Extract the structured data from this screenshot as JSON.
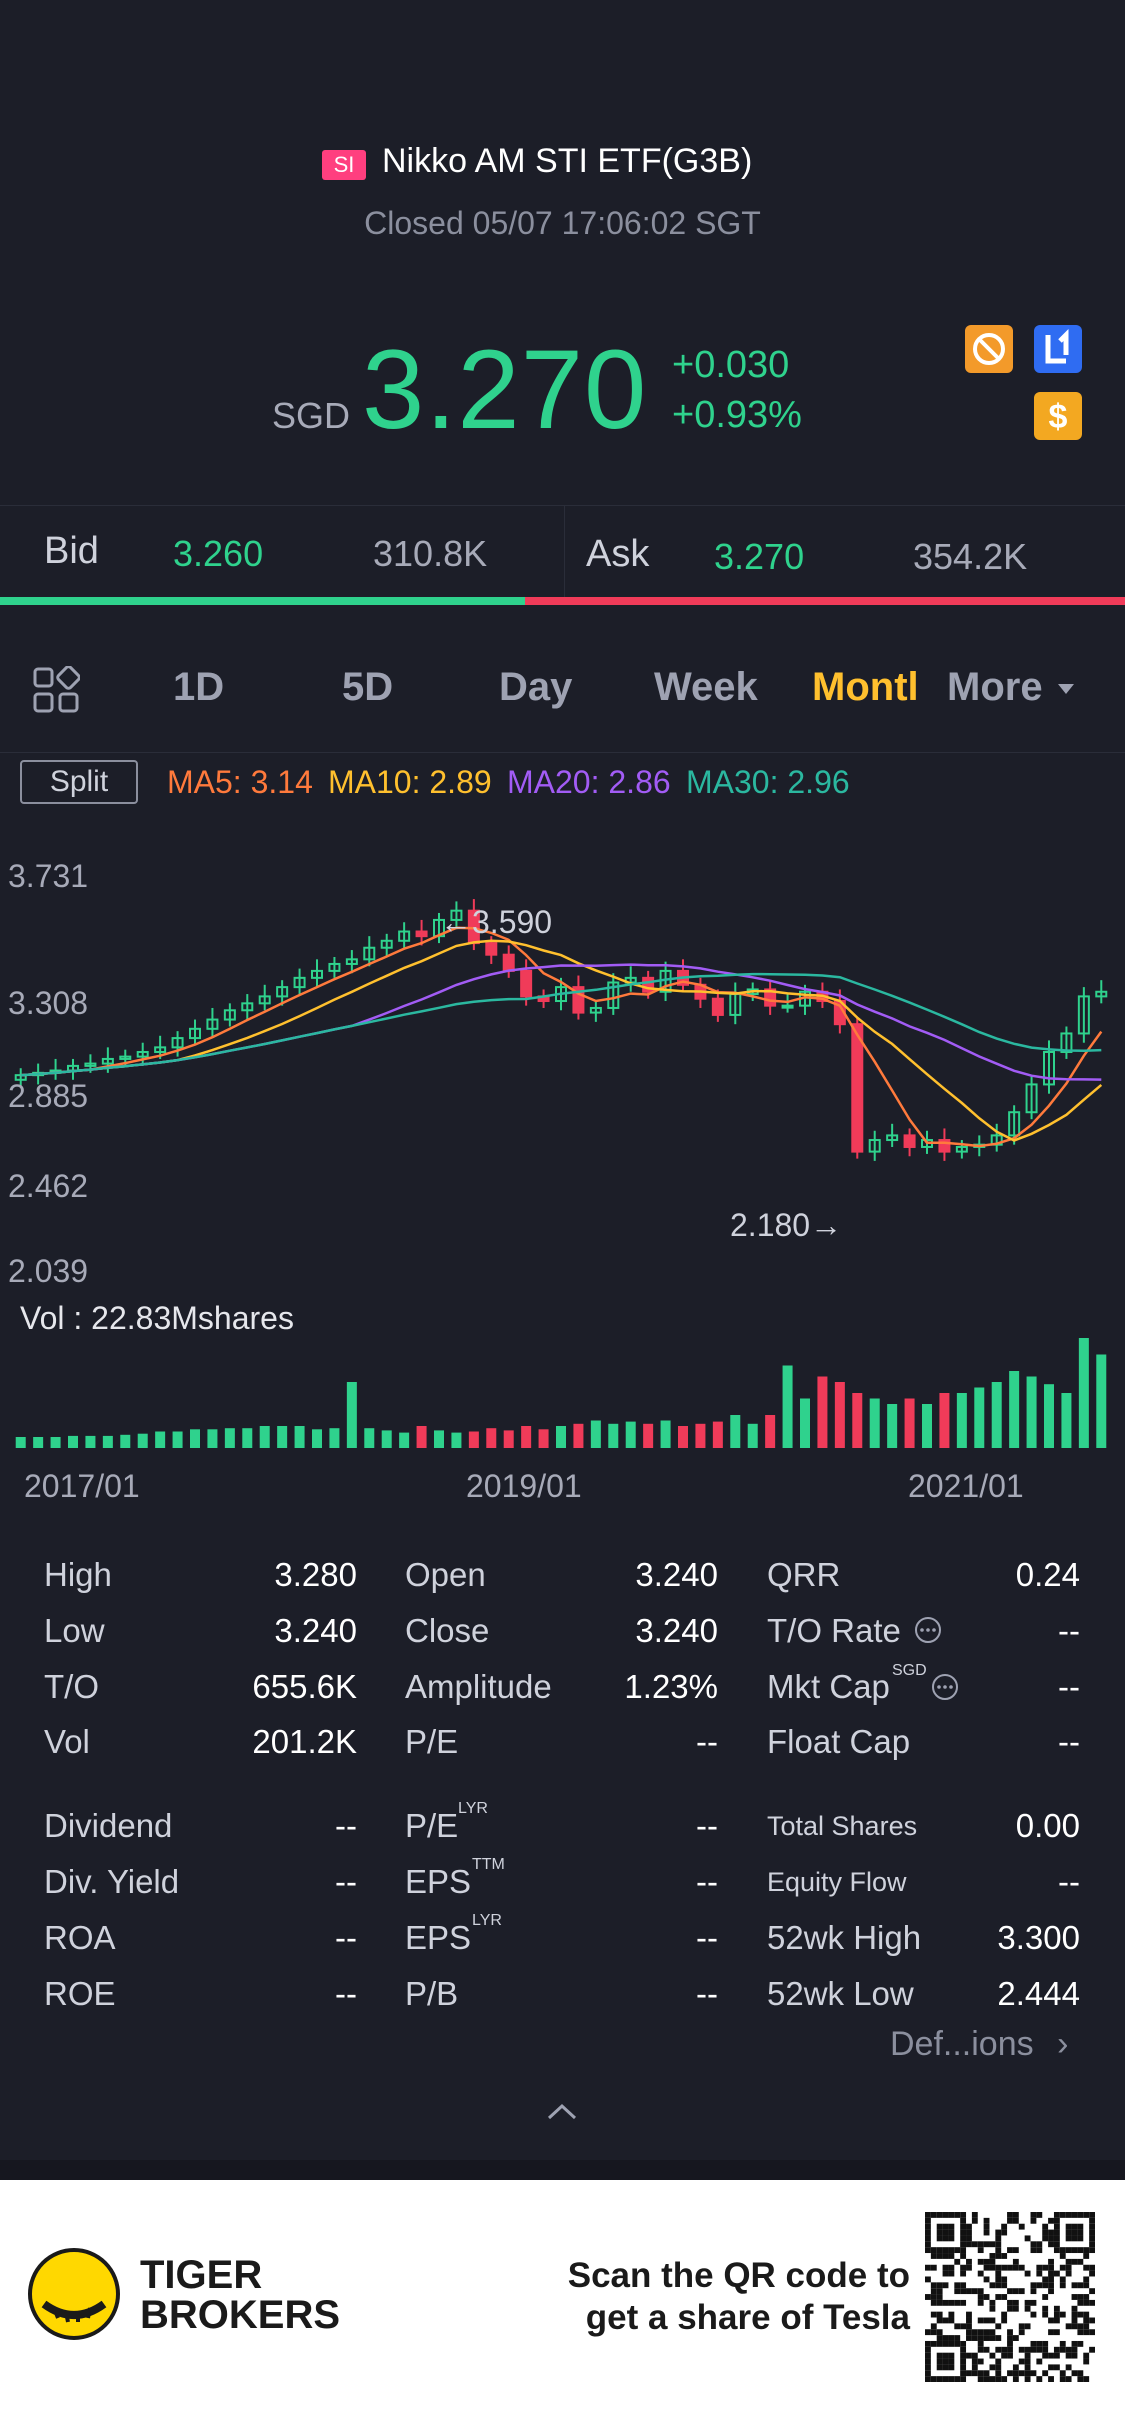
{
  "header": {
    "market_tag": "SI",
    "title": "Nikko AM STI ETF(G3B)",
    "status": "Closed 05/07 17:06:02 SGT",
    "currency": "SGD",
    "price": "3.270",
    "change": "+0.030",
    "change_pct": "+0.93%",
    "icons": [
      "no-short-icon",
      "level1-icon",
      "dollar-icon"
    ]
  },
  "quote": {
    "bid_label": "Bid",
    "bid_price": "3.260",
    "bid_size": "310.8K",
    "ask_label": "Ask",
    "ask_price": "3.270",
    "ask_size": "354.2K",
    "bid_ratio": 0.466
  },
  "tabs": [
    "1D",
    "5D",
    "Day",
    "Week",
    "Montl",
    "More"
  ],
  "active_tab": "Montl",
  "indicators": {
    "split_label": "Split",
    "ma5": "MA5: 3.14",
    "ma10": "MA10: 2.89",
    "ma20": "MA20: 2.86",
    "ma30": "MA30: 2.96"
  },
  "colors": {
    "up": "#2fd28d",
    "down": "#f03b59",
    "ma5": "#ff7a3c",
    "ma10": "#ffc02e",
    "ma20": "#a25cf5",
    "ma30": "#2bb8a0",
    "active_tab": "#ffc02e"
  },
  "chart_data": {
    "type": "candlestick",
    "y_ticks": [
      "3.731",
      "3.308",
      "2.885",
      "2.462",
      "2.039"
    ],
    "ylim": [
      2.039,
      3.731
    ],
    "x_ticks": [
      "2017/01",
      "2019/01",
      "2021/01"
    ],
    "high_annotation": "←3.590",
    "low_annotation": "2.180→",
    "volume_label": "Vol  : 22.83Mshares",
    "closes": [
      2.88,
      2.89,
      2.9,
      2.92,
      2.93,
      2.95,
      2.96,
      2.98,
      3.0,
      3.04,
      3.08,
      3.12,
      3.16,
      3.19,
      3.22,
      3.26,
      3.3,
      3.33,
      3.36,
      3.38,
      3.43,
      3.46,
      3.5,
      3.48,
      3.55,
      3.59,
      3.45,
      3.4,
      3.33,
      3.22,
      3.2,
      3.26,
      3.15,
      3.17,
      3.28,
      3.3,
      3.24,
      3.33,
      3.27,
      3.21,
      3.14,
      3.23,
      3.25,
      3.18,
      3.18,
      3.24,
      3.2,
      3.1,
      2.55,
      2.6,
      2.62,
      2.57,
      2.6,
      2.55,
      2.57,
      2.58,
      2.62,
      2.72,
      2.84,
      2.98,
      3.06,
      3.22,
      3.24
    ],
    "volumes": [
      0.1,
      0.1,
      0.1,
      0.11,
      0.11,
      0.11,
      0.12,
      0.13,
      0.15,
      0.15,
      0.17,
      0.17,
      0.18,
      0.18,
      0.2,
      0.2,
      0.2,
      0.17,
      0.18,
      0.6,
      0.18,
      0.16,
      0.14,
      0.2,
      0.16,
      0.14,
      0.15,
      0.18,
      0.16,
      0.2,
      0.17,
      0.2,
      0.22,
      0.25,
      0.22,
      0.24,
      0.22,
      0.25,
      0.2,
      0.22,
      0.24,
      0.3,
      0.22,
      0.3,
      0.75,
      0.45,
      0.65,
      0.6,
      0.5,
      0.45,
      0.4,
      0.45,
      0.4,
      0.5,
      0.5,
      0.55,
      0.6,
      0.7,
      0.65,
      0.58,
      0.5,
      1.0,
      0.85
    ],
    "dates_range": [
      "2016/05",
      "2021/07"
    ]
  },
  "stats": {
    "rows1": [
      [
        [
          "High",
          "3.280"
        ],
        [
          "Open",
          "3.240"
        ],
        [
          "QRR",
          "0.24"
        ]
      ],
      [
        [
          "Low",
          "3.240"
        ],
        [
          "Close",
          "3.240"
        ],
        [
          "T/O Rate",
          "--"
        ]
      ],
      [
        [
          "T/O",
          "655.6K"
        ],
        [
          "Amplitude",
          "1.23%"
        ],
        [
          "Mkt Cap",
          "--"
        ]
      ],
      [
        [
          "Vol",
          "201.2K"
        ],
        [
          "P/E",
          "--"
        ],
        [
          "Float Cap",
          "--"
        ]
      ]
    ],
    "rows2": [
      [
        [
          "Dividend",
          "--"
        ],
        [
          "P/E",
          "--"
        ],
        [
          "Total Shares",
          "0.00"
        ]
      ],
      [
        [
          "Div. Yield",
          "--"
        ],
        [
          "EPS",
          "--"
        ],
        [
          "Equity Flow",
          "--"
        ]
      ],
      [
        [
          "ROA",
          "--"
        ],
        [
          "EPS",
          "--"
        ],
        [
          "52wk High",
          "3.300"
        ]
      ],
      [
        [
          "ROE",
          "--"
        ],
        [
          "P/B",
          "--"
        ],
        [
          "52wk Low",
          "2.444"
        ]
      ]
    ],
    "pe_sup": "LYR",
    "eps1_sup": "TTM",
    "eps2_sup": "LYR",
    "mktcap_sup": "SGD",
    "definitions_link": "Def...ions"
  },
  "footer": {
    "brand_line1": "TIGER",
    "brand_line2": "BROKERS",
    "scan_line1": "Scan the QR code to",
    "scan_line2": "get a share of Tesla"
  }
}
